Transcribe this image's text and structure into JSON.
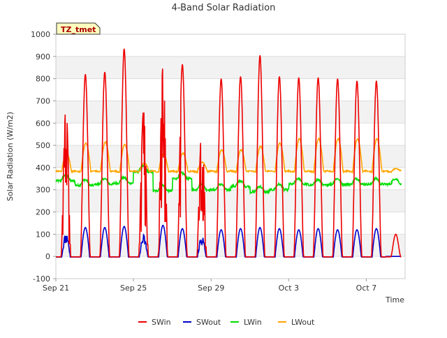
{
  "chart_data": {
    "type": "line",
    "title": "4-Band Solar Radiation",
    "xlabel": "Time",
    "ylabel": "Solar Radiation (W/m2)",
    "site_label": "TZ_tmet",
    "xlim": [
      "2023-09-21",
      "2023-10-09"
    ],
    "ylim": [
      -100,
      1000
    ],
    "y_ticks": [
      -100,
      0,
      100,
      200,
      300,
      400,
      500,
      600,
      700,
      800,
      900,
      1000
    ],
    "x_ticks": [
      {
        "date": "2023-09-21",
        "label": "Sep 21"
      },
      {
        "date": "2023-09-25",
        "label": "Sep 25"
      },
      {
        "date": "2023-09-29",
        "label": "Sep 29"
      },
      {
        "date": "2023-10-03",
        "label": "Oct 3"
      },
      {
        "date": "2023-10-07",
        "label": "Oct 7"
      }
    ],
    "legend_position": "bottom",
    "grid": true,
    "x_unit": "day",
    "series": [
      {
        "name": "SWin",
        "color": "#ee0000",
        "x": [
          "2023-09-21",
          "2023-09-22",
          "2023-09-23",
          "2023-09-24",
          "2023-09-25",
          "2023-09-26",
          "2023-09-27",
          "2023-09-28",
          "2023-09-29",
          "2023-09-30",
          "2023-10-01",
          "2023-10-02",
          "2023-10-03",
          "2023-10-04",
          "2023-10-05",
          "2023-10-06",
          "2023-10-07",
          "2023-10-08"
        ],
        "values": [
          670,
          820,
          830,
          935,
          655,
          855,
          865,
          570,
          800,
          810,
          905,
          810,
          805,
          805,
          800,
          790,
          790,
          100
        ]
      },
      {
        "name": "SWout",
        "color": "#0000cc",
        "x": [
          "2023-09-21",
          "2023-09-22",
          "2023-09-23",
          "2023-09-24",
          "2023-09-25",
          "2023-09-26",
          "2023-09-27",
          "2023-09-28",
          "2023-09-29",
          "2023-09-30",
          "2023-10-01",
          "2023-10-02",
          "2023-10-03",
          "2023-10-04",
          "2023-10-05",
          "2023-10-06",
          "2023-10-07"
        ],
        "values": [
          105,
          130,
          130,
          135,
          100,
          140,
          125,
          100,
          120,
          125,
          130,
          125,
          120,
          125,
          120,
          120,
          125
        ]
      },
      {
        "name": "LWin",
        "color": "#00dd00",
        "x": [
          "2023-09-21",
          "2023-09-22",
          "2023-09-23",
          "2023-09-24",
          "2023-09-25",
          "2023-09-26",
          "2023-09-27",
          "2023-09-28",
          "2023-09-29",
          "2023-09-30",
          "2023-10-01",
          "2023-10-02",
          "2023-10-03",
          "2023-10-04",
          "2023-10-05",
          "2023-10-06",
          "2023-10-07",
          "2023-10-08"
        ],
        "values": [
          340,
          320,
          325,
          330,
          380,
          295,
          350,
          300,
          300,
          315,
          290,
          300,
          325,
          320,
          325,
          325,
          325,
          325
        ]
      },
      {
        "name": "LWout",
        "color": "#ffa500",
        "x": [
          "2023-09-21",
          "2023-09-22",
          "2023-09-23",
          "2023-09-24",
          "2023-09-25",
          "2023-09-26",
          "2023-09-27",
          "2023-09-28",
          "2023-09-29",
          "2023-09-30",
          "2023-10-01",
          "2023-10-02",
          "2023-10-03",
          "2023-10-04",
          "2023-10-05",
          "2023-10-06",
          "2023-10-07",
          "2023-10-08"
        ],
        "values": [
          465,
          510,
          515,
          505,
          420,
          460,
          465,
          425,
          480,
          480,
          495,
          510,
          530,
          530,
          530,
          530,
          530,
          395
        ]
      }
    ]
  }
}
